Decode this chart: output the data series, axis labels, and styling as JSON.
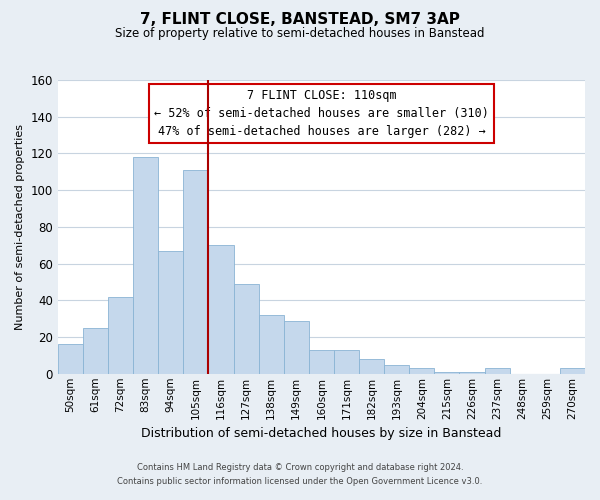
{
  "title": "7, FLINT CLOSE, BANSTEAD, SM7 3AP",
  "subtitle": "Size of property relative to semi-detached houses in Banstead",
  "xlabel": "Distribution of semi-detached houses by size in Banstead",
  "ylabel": "Number of semi-detached properties",
  "categories": [
    "50sqm",
    "61sqm",
    "72sqm",
    "83sqm",
    "94sqm",
    "105sqm",
    "116sqm",
    "127sqm",
    "138sqm",
    "149sqm",
    "160sqm",
    "171sqm",
    "182sqm",
    "193sqm",
    "204sqm",
    "215sqm",
    "226sqm",
    "237sqm",
    "248sqm",
    "259sqm",
    "270sqm"
  ],
  "values": [
    16,
    25,
    42,
    118,
    67,
    111,
    70,
    49,
    32,
    29,
    13,
    13,
    8,
    5,
    3,
    1,
    1,
    3,
    0,
    0,
    3
  ],
  "bar_color": "#c5d8ec",
  "bar_edge_color": "#8ab4d4",
  "vline_x": 5.5,
  "vline_color": "#aa0000",
  "annotation_title": "7 FLINT CLOSE: 110sqm",
  "annotation_line1": "← 52% of semi-detached houses are smaller (310)",
  "annotation_line2": "47% of semi-detached houses are larger (282) →",
  "annotation_box_facecolor": "#ffffff",
  "annotation_box_edgecolor": "#cc0000",
  "ylim": [
    0,
    160
  ],
  "yticks": [
    0,
    20,
    40,
    60,
    80,
    100,
    120,
    140,
    160
  ],
  "footer1": "Contains HM Land Registry data © Crown copyright and database right 2024.",
  "footer2": "Contains public sector information licensed under the Open Government Licence v3.0.",
  "fig_facecolor": "#e8eef4",
  "plot_facecolor": "#ffffff",
  "grid_color": "#c8d4e0"
}
